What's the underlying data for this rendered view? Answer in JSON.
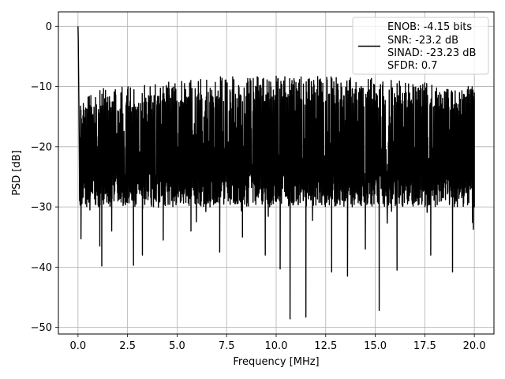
{
  "chart_data": {
    "type": "line",
    "title": "",
    "xlabel": "Frequency [MHz]",
    "ylabel": "PSD [dB]",
    "xlim": [
      -0.99,
      20.99
    ],
    "ylim": [
      -51.1,
      2.4
    ],
    "xticks": [
      0.0,
      2.5,
      5.0,
      7.5,
      10.0,
      12.5,
      15.0,
      17.5,
      20.0
    ],
    "xtick_labels": [
      "0.0",
      "2.5",
      "5.0",
      "7.5",
      "10.0",
      "12.5",
      "15.0",
      "17.5",
      "20.0"
    ],
    "yticks": [
      0,
      -10,
      -20,
      -30,
      -40,
      -50
    ],
    "ytick_labels": [
      "0",
      "−10",
      "−20",
      "−30",
      "−40",
      "−50"
    ],
    "grid": true,
    "legend_position": "top-right",
    "series": [
      {
        "legend": [
          "ENOB: -4.15 bits",
          "SNR: -23.2 dB",
          "SINAD: -23.23 dB",
          "SFDR: 0.7"
        ],
        "color": "#000000",
        "x_range": [
          0.0,
          20.0
        ],
        "start_y": [
          0.0,
          -2.0,
          -6.0,
          -10.0,
          -14.0
        ],
        "typical_band": [
          -27.0,
          -9.0
        ],
        "upper_envelope": [
          [
            0.2,
            -12.0
          ],
          [
            1.0,
            -10.0
          ],
          [
            3.0,
            -10.0
          ],
          [
            6.0,
            -8.5
          ],
          [
            10.0,
            -8.0
          ],
          [
            14.0,
            -8.5
          ],
          [
            17.0,
            -9.0
          ],
          [
            20.0,
            -10.0
          ]
        ],
        "minima": [
          {
            "x": 0.15,
            "y": -35.3
          },
          {
            "x": 0.6,
            "y": -30.5
          },
          {
            "x": 1.1,
            "y": -36.5
          },
          {
            "x": 1.2,
            "y": -39.8
          },
          {
            "x": 1.7,
            "y": -34.0
          },
          {
            "x": 2.8,
            "y": -39.7
          },
          {
            "x": 3.25,
            "y": -38.0
          },
          {
            "x": 4.3,
            "y": -35.5
          },
          {
            "x": 5.7,
            "y": -34.0
          },
          {
            "x": 7.15,
            "y": -37.5
          },
          {
            "x": 8.3,
            "y": -35.0
          },
          {
            "x": 9.45,
            "y": -38.0
          },
          {
            "x": 10.2,
            "y": -40.3
          },
          {
            "x": 10.7,
            "y": -48.6
          },
          {
            "x": 11.5,
            "y": -48.3
          },
          {
            "x": 12.8,
            "y": -40.8
          },
          {
            "x": 13.6,
            "y": -41.5
          },
          {
            "x": 14.5,
            "y": -37.0
          },
          {
            "x": 15.2,
            "y": -47.2
          },
          {
            "x": 16.1,
            "y": -40.5
          },
          {
            "x": 17.8,
            "y": -38.0
          },
          {
            "x": 18.9,
            "y": -40.8
          },
          {
            "x": 19.95,
            "y": -33.7
          }
        ]
      }
    ]
  }
}
